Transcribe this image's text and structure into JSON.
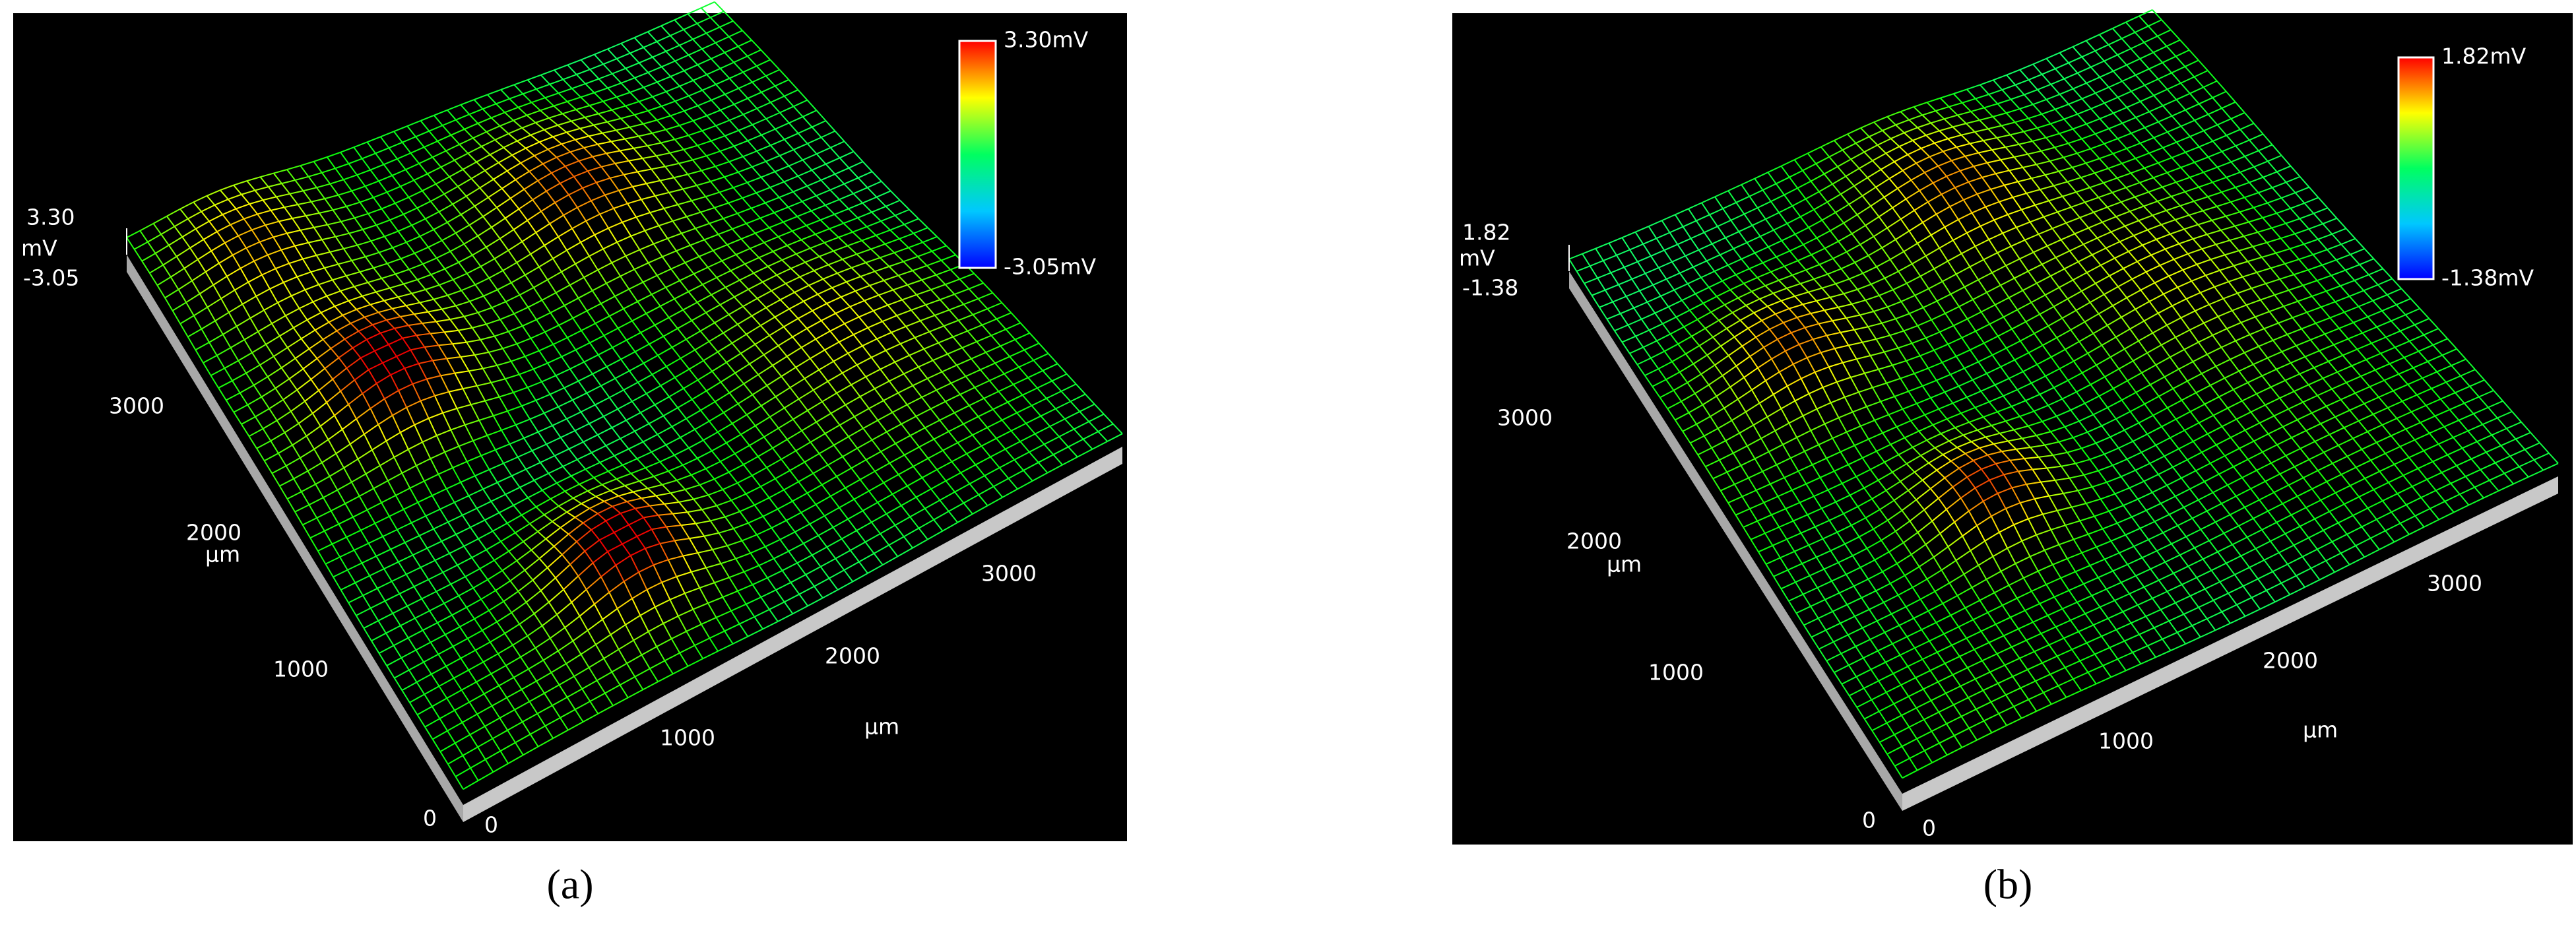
{
  "panels": [
    {
      "caption": "(a)",
      "z_axis": {
        "max": "3.30",
        "unit": "mV",
        "min": "-3.05"
      },
      "colorbar": {
        "max": "3.30mV",
        "min": "-3.05mV"
      },
      "y_axis": {
        "ticks": [
          "0",
          "1000",
          "2000",
          "3000"
        ],
        "unit": "µm"
      },
      "x_axis": {
        "ticks": [
          "0",
          "1000",
          "2000",
          "3000"
        ],
        "unit": "µm"
      }
    },
    {
      "caption": "(b)",
      "z_axis": {
        "max": "1.82",
        "unit": "mV",
        "min": "-1.38"
      },
      "colorbar": {
        "max": "1.82mV",
        "min": "-1.38mV"
      },
      "y_axis": {
        "ticks": [
          "0",
          "1000",
          "2000",
          "3000"
        ],
        "unit": "µm"
      },
      "x_axis": {
        "ticks": [
          "0",
          "1000",
          "2000",
          "3000"
        ],
        "unit": "µm"
      }
    }
  ]
}
